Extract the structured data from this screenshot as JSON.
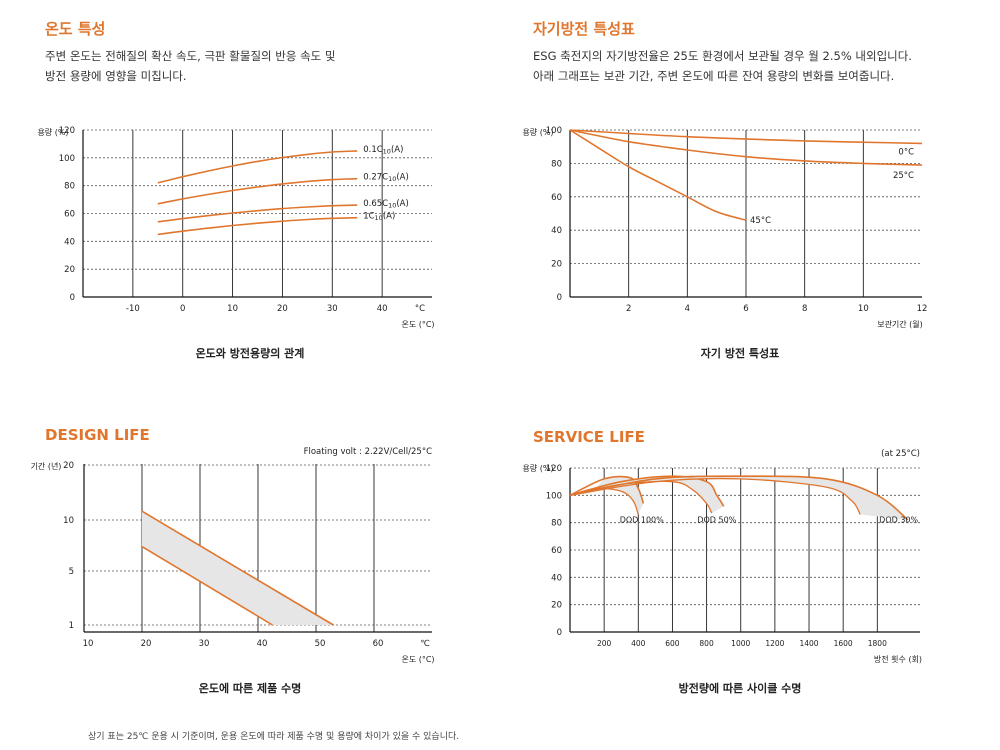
{
  "sections": {
    "temp": {
      "title": "온도 특성",
      "desc1": "주변 온도는 전해질의 확산 속도, 극판 활물질의 반응 속도 및",
      "desc2": "방전 용량에 영향을 미칩니다.",
      "caption": "온도와 방전용량의 관계"
    },
    "selfdis": {
      "title": "자기방전 특성표",
      "desc1": "ESG 축전지의 자기방전율은 25도 환경에서 보관될 경우 월 2.5% 내외입니다.",
      "desc2": "아래 그래프는 보관 기간, 주변 온도에 따른 잔여 용량의 변화를 보여줍니다.",
      "caption": "자기 방전 특성표"
    },
    "design": {
      "title": "DESIGN LIFE",
      "caption": "온도에 따른 제품 수명"
    },
    "service": {
      "title": "SERVICE LIFE",
      "caption": "방전량에 따른 사이클 수명"
    }
  },
  "footnote": "상기 표는 25℃ 운용 시 기준이며, 운용 온도에 따라 제품 수명 및 용량에 차이가 있을 수 있습니다.",
  "colors": {
    "accent": "#e0762e",
    "band": "#e6e6e6",
    "axis": "#111111"
  },
  "chart_data": [
    {
      "id": "temp",
      "type": "line",
      "xlabel": "온도 (°C)",
      "ylabel": "용량 (%)",
      "x_unit_label": "°C",
      "xlim": [
        -20,
        50
      ],
      "ylim": [
        0,
        120
      ],
      "xticks": [
        -10,
        0,
        10,
        20,
        30,
        40
      ],
      "yticks": [
        0,
        20,
        40,
        60,
        80,
        100,
        120
      ],
      "series": [
        {
          "name": "0.1C10(A)",
          "label_main": "0.1C",
          "label_sub": "10",
          "label_tail": "(A)",
          "x": [
            -5,
            35
          ],
          "y": [
            82,
            105
          ]
        },
        {
          "name": "0.27C10(A)",
          "label_main": "0.27C",
          "label_sub": "10",
          "label_tail": "(A)",
          "x": [
            -5,
            35
          ],
          "y": [
            67,
            85
          ]
        },
        {
          "name": "0.65C10(A)",
          "label_main": "0.65C",
          "label_sub": "10",
          "label_tail": "(A)",
          "x": [
            -5,
            35
          ],
          "y": [
            54,
            66
          ]
        },
        {
          "name": "1C10(A)",
          "label_main": "1C",
          "label_sub": "10",
          "label_tail": "(A)",
          "x": [
            -5,
            35
          ],
          "y": [
            45,
            57
          ]
        }
      ]
    },
    {
      "id": "selfdis",
      "type": "line",
      "xlabel": "보관기간 (월)",
      "ylabel": "용량 (%)",
      "xlim": [
        0,
        12
      ],
      "ylim": [
        0,
        100
      ],
      "xticks": [
        2,
        4,
        6,
        8,
        10,
        12
      ],
      "yticks": [
        0,
        20,
        40,
        60,
        80,
        100
      ],
      "series": [
        {
          "name": "0°C",
          "x": [
            0,
            4,
            8,
            12
          ],
          "y": [
            100,
            96,
            93.5,
            92
          ]
        },
        {
          "name": "25°C",
          "x": [
            0,
            2,
            4,
            6,
            8,
            10,
            12
          ],
          "y": [
            100,
            93,
            88,
            84,
            81.5,
            80,
            79
          ]
        },
        {
          "name": "45°C",
          "x": [
            0,
            1,
            2,
            3,
            4,
            5,
            6
          ],
          "y": [
            100,
            89,
            78,
            69,
            60,
            51,
            46
          ]
        }
      ]
    },
    {
      "id": "design",
      "type": "area",
      "annotation": "Floating volt : 2.22V/Cell/25°C",
      "xlabel": "온도 (°C)",
      "ylabel": "기간 (년)",
      "x_unit_label": "℃",
      "xlim": [
        10,
        70
      ],
      "xticks": [
        10,
        20,
        30,
        40,
        50,
        60
      ],
      "yticks": [
        "1",
        "5",
        "10",
        "20"
      ],
      "band_upper": {
        "x": [
          20,
          53
        ],
        "y": [
          11.6,
          1
        ]
      },
      "band_lower": {
        "x": [
          20,
          42.5
        ],
        "y": [
          7.4,
          1
        ]
      }
    },
    {
      "id": "service",
      "type": "line",
      "annotation": "(at 25°C)",
      "xlabel": "방전 횟수 (회)",
      "ylabel": "용량 (%)",
      "xlim": [
        0,
        2050
      ],
      "ylim": [
        0,
        120
      ],
      "xticks": [
        200,
        400,
        600,
        800,
        1000,
        1200,
        1400,
        1600,
        1800
      ],
      "yticks": [
        0,
        20,
        40,
        60,
        80,
        100,
        120
      ],
      "series": [
        {
          "name": "DOD 100%",
          "x": [
            0,
            200,
            350,
            400,
            430
          ],
          "y": [
            100,
            112,
            113,
            105,
            94
          ],
          "band_x": [
            0,
            150,
            300,
            370,
            400
          ],
          "band_y": [
            100,
            105,
            103,
            96,
            86
          ]
        },
        {
          "name": "DOD 50%",
          "x": [
            0,
            300,
            600,
            800,
            860,
            900
          ],
          "y": [
            100,
            110,
            114,
            110,
            100,
            92
          ],
          "band_x": [
            0,
            300,
            600,
            720,
            800,
            830
          ],
          "band_y": [
            100,
            108,
            110,
            104,
            94,
            87
          ]
        },
        {
          "name": "DOD 30%",
          "x": [
            0,
            500,
            1000,
            1500,
            1800,
            1980
          ],
          "y": [
            100,
            112,
            114,
            112,
            100,
            82
          ],
          "band_x": [
            0,
            500,
            1000,
            1500,
            1650,
            1700
          ],
          "band_y": [
            100,
            110,
            112,
            106,
            96,
            86
          ]
        }
      ]
    }
  ]
}
